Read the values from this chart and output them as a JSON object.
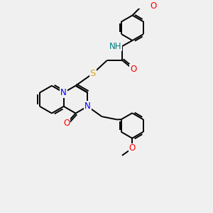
{
  "background_color": "#f0f0f0",
  "N_col": "#0000FF",
  "O_col": "#FF0000",
  "S_col": "#DAA520",
  "H_col": "#008080",
  "C_col": "#000000",
  "lw": 1.4,
  "fs": 8.5,
  "dpi": 100,
  "figsize": [
    3.0,
    3.0
  ],
  "xlim": [
    0,
    10
  ],
  "ylim": [
    0,
    10
  ]
}
